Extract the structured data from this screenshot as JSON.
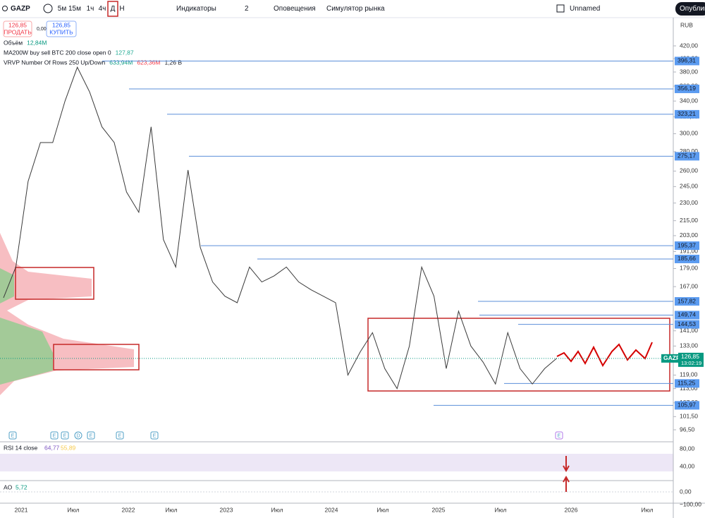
{
  "toolbar": {
    "symbol": "GAZP",
    "intervals": [
      "5м",
      "15м",
      "1ч",
      "4ч",
      "Д",
      "Н"
    ],
    "indicators": "Индикаторы",
    "layouts": "2",
    "alerts": "Оповещения",
    "replay": "Симулятор рынка",
    "layout_name": "Unnamed",
    "publish": "Опублико"
  },
  "trade": {
    "sell_price": "126,85",
    "sell": "ПРОДАТЬ",
    "spread": "0,00",
    "buy_price": "126,85",
    "buy": "КУПИТЬ"
  },
  "legend": {
    "volume": {
      "name": "Объём",
      "value": "12,84M"
    },
    "ma": {
      "name": "MA200W buy sell BTC 200 close open 0",
      "value": "127,87"
    },
    "vrvp": {
      "name": "VRVP Number Of Rows 250 Up/Down",
      "up": "633,94M",
      "down": "623,36M",
      "total": "1,26 B"
    }
  },
  "price_axis": {
    "currency": "RUB",
    "ticks": [
      {
        "value": 420,
        "label": "420,00"
      },
      {
        "value": 400,
        "label": "400,00"
      },
      {
        "value": 380,
        "label": "380,00"
      },
      {
        "value": 360,
        "label": "360,00"
      },
      {
        "value": 340,
        "label": "340,00"
      },
      {
        "value": 320,
        "label": "320,00"
      },
      {
        "value": 300,
        "label": "300,00"
      },
      {
        "value": 280,
        "label": "280,00"
      },
      {
        "value": 260,
        "label": "260,00"
      },
      {
        "value": 245,
        "label": "245,00"
      },
      {
        "value": 230,
        "label": "230,00"
      },
      {
        "value": 215,
        "label": "215,00"
      },
      {
        "value": 203,
        "label": "203,00"
      },
      {
        "value": 191,
        "label": "191,00"
      },
      {
        "value": 179,
        "label": "179,00"
      },
      {
        "value": 167,
        "label": "167,00"
      },
      {
        "value": 141,
        "label": "141,00"
      },
      {
        "value": 133,
        "label": "133,00"
      },
      {
        "value": 119,
        "label": "119,00"
      },
      {
        "value": 113,
        "label": "113,00"
      },
      {
        "value": 107,
        "label": "107,00"
      },
      {
        "value": 101.5,
        "label": "101,50"
      },
      {
        "value": 96.5,
        "label": "96,50"
      }
    ]
  },
  "levels": [
    {
      "value": 396.31,
      "label": "396,31"
    },
    {
      "value": 356.19,
      "label": "356,19"
    },
    {
      "value": 323.21,
      "label": "323,21"
    },
    {
      "value": 275.17,
      "label": "275,17"
    },
    {
      "value": 195.37,
      "label": "195,37"
    },
    {
      "value": 185.66,
      "label": "185,66"
    },
    {
      "value": 157.82,
      "label": "157,82"
    },
    {
      "value": 149.74,
      "label": "149,74"
    },
    {
      "value": 144.53,
      "label": "144,53"
    },
    {
      "value": 115.25,
      "label": "115,25"
    },
    {
      "value": 105.97,
      "label": "105,97"
    }
  ],
  "last": {
    "symbol": "GAZP",
    "value": 126.85,
    "label": "126,85",
    "countdown": "13:02:19"
  },
  "price": [
    160,
    180,
    250,
    290,
    290,
    340,
    387,
    352,
    308,
    290,
    240,
    222,
    308,
    200,
    180,
    261,
    194,
    170,
    161,
    157,
    180,
    170,
    174,
    180,
    170,
    165,
    161,
    157,
    119,
    130,
    140,
    122,
    113,
    133,
    180,
    161,
    122,
    152,
    133,
    125,
    115,
    140,
    122,
    115,
    122,
    127
  ],
  "events": [
    "E",
    "E",
    "E",
    "D",
    "E",
    "E",
    "E",
    "E"
  ],
  "time_axis": [
    "2021",
    "Июл",
    "2022",
    "Июл",
    "2023",
    "Июл",
    "2024",
    "Июл",
    "2025",
    "Июл",
    "2026",
    "Июл"
  ],
  "rsi": {
    "name": "RSI 14 close",
    "values": [
      "64,77",
      "55,89"
    ],
    "ticks": [
      "80,00",
      "40,00"
    ]
  },
  "ao": {
    "name": "AO",
    "value": "5,72",
    "ticks": [
      "0,00",
      "−100,00"
    ]
  }
}
